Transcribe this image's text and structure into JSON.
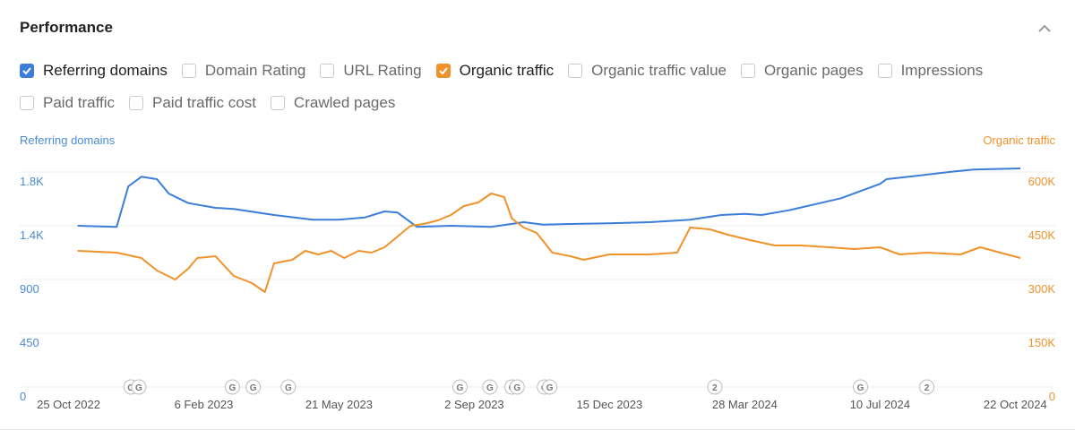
{
  "header": {
    "title": "Performance"
  },
  "metrics": [
    [
      {
        "label": "Referring domains",
        "checked": true,
        "color": "#3b7dd8"
      },
      {
        "label": "Domain Rating",
        "checked": false
      },
      {
        "label": "URL Rating",
        "checked": false
      },
      {
        "label": "Organic traffic",
        "checked": true,
        "color": "#f0922a"
      },
      {
        "label": "Organic traffic value",
        "checked": false
      },
      {
        "label": "Organic pages",
        "checked": false
      },
      {
        "label": "Impressions",
        "checked": false
      }
    ],
    [
      {
        "label": "Paid traffic",
        "checked": false
      },
      {
        "label": "Paid traffic cost",
        "checked": false
      },
      {
        "label": "Crawled pages",
        "checked": false
      }
    ]
  ],
  "icons": {
    "collapse": "chevron-up-icon",
    "checkbox": "check-icon",
    "update_marker": "google-update-icon"
  },
  "chart_data": {
    "type": "line",
    "y_left_label": "Referring domains",
    "y_right_label": "Organic traffic",
    "y_left_ticks": [
      "1.8K",
      "1.4K",
      "900",
      "450",
      "0"
    ],
    "y_right_ticks": [
      "600K",
      "450K",
      "300K",
      "150K",
      "0"
    ],
    "y_left_range": [
      0,
      1800
    ],
    "y_right_range": [
      0,
      600000
    ],
    "x_range": [
      "2022-10-15",
      "2024-10-28"
    ],
    "x_ticks": [
      "25 Oct 2022",
      "6 Feb 2023",
      "21 May 2023",
      "2 Sep 2023",
      "15 Dec 2023",
      "28 Mar 2024",
      "10 Jul 2024",
      "22 Oct 2024"
    ],
    "x_tick_dates": [
      "2022-10-25",
      "2023-02-06",
      "2023-05-21",
      "2023-09-02",
      "2023-12-15",
      "2024-03-28",
      "2024-07-10",
      "2024-10-22"
    ],
    "grid": true,
    "series": [
      {
        "name": "Referring domains",
        "axis": "left",
        "color": "#3b7dd8",
        "x": [
          "2022-11-01",
          "2022-12-01",
          "2022-12-10",
          "2022-12-20",
          "2023-01-01",
          "2023-01-10",
          "2023-01-25",
          "2023-02-15",
          "2023-03-01",
          "2023-04-01",
          "2023-05-01",
          "2023-05-20",
          "2023-06-10",
          "2023-06-25",
          "2023-07-05",
          "2023-07-20",
          "2023-08-15",
          "2023-09-15",
          "2023-10-10",
          "2023-10-25",
          "2023-11-15",
          "2023-12-15",
          "2024-01-15",
          "2024-02-15",
          "2024-03-10",
          "2024-03-28",
          "2024-04-10",
          "2024-05-01",
          "2024-05-25",
          "2024-06-10",
          "2024-06-25",
          "2024-07-10",
          "2024-07-15",
          "2024-08-01",
          "2024-09-01",
          "2024-09-20",
          "2024-10-26"
        ],
        "values": [
          1350,
          1340,
          1680,
          1760,
          1740,
          1620,
          1540,
          1500,
          1490,
          1440,
          1400,
          1400,
          1420,
          1470,
          1460,
          1340,
          1350,
          1340,
          1380,
          1360,
          1365,
          1370,
          1380,
          1400,
          1440,
          1450,
          1440,
          1480,
          1540,
          1580,
          1640,
          1700,
          1740,
          1760,
          1800,
          1820,
          1830
        ]
      },
      {
        "name": "Organic traffic",
        "axis": "right",
        "color": "#f0922a",
        "x": [
          "2022-11-01",
          "2022-12-01",
          "2022-12-20",
          "2023-01-01",
          "2023-01-15",
          "2023-01-25",
          "2023-02-01",
          "2023-02-15",
          "2023-03-01",
          "2023-03-15",
          "2023-03-25",
          "2023-04-01",
          "2023-04-15",
          "2023-04-25",
          "2023-05-05",
          "2023-05-15",
          "2023-05-25",
          "2023-06-05",
          "2023-06-15",
          "2023-06-25",
          "2023-07-05",
          "2023-07-15",
          "2023-07-25",
          "2023-08-05",
          "2023-08-15",
          "2023-08-25",
          "2023-09-05",
          "2023-09-15",
          "2023-09-25",
          "2023-10-01",
          "2023-10-10",
          "2023-10-20",
          "2023-11-01",
          "2023-11-15",
          "2023-11-25",
          "2023-12-15",
          "2024-01-15",
          "2024-02-05",
          "2024-02-15",
          "2024-03-01",
          "2024-03-15",
          "2024-04-01",
          "2024-04-20",
          "2024-05-10",
          "2024-06-01",
          "2024-06-20",
          "2024-07-10",
          "2024-07-25",
          "2024-08-15",
          "2024-09-10",
          "2024-09-25",
          "2024-10-26"
        ],
        "values": [
          380000,
          375000,
          360000,
          325000,
          300000,
          330000,
          360000,
          365000,
          310000,
          290000,
          265000,
          345000,
          355000,
          380000,
          370000,
          380000,
          360000,
          380000,
          375000,
          390000,
          420000,
          450000,
          455000,
          465000,
          480000,
          505000,
          515000,
          540000,
          530000,
          470000,
          445000,
          430000,
          375000,
          365000,
          355000,
          370000,
          370000,
          375000,
          445000,
          440000,
          425000,
          410000,
          395000,
          395000,
          390000,
          385000,
          390000,
          370000,
          375000,
          370000,
          390000,
          360000
        ]
      }
    ],
    "markers": [
      {
        "date": "2022-12-12",
        "label": "G"
      },
      {
        "date": "2022-12-18",
        "label": "G"
      },
      {
        "date": "2023-02-28",
        "label": "G"
      },
      {
        "date": "2023-03-16",
        "label": "G"
      },
      {
        "date": "2023-04-12",
        "label": "G"
      },
      {
        "date": "2023-08-22",
        "label": "G"
      },
      {
        "date": "2023-09-14",
        "label": "G"
      },
      {
        "date": "2023-10-01",
        "label": "G"
      },
      {
        "date": "2023-10-05",
        "label": "G"
      },
      {
        "date": "2023-10-26",
        "label": "G"
      },
      {
        "date": "2023-10-30",
        "label": "G"
      },
      {
        "date": "2024-03-05",
        "label": "2"
      },
      {
        "date": "2024-06-25",
        "label": "G"
      },
      {
        "date": "2024-08-15",
        "label": "2"
      }
    ]
  }
}
